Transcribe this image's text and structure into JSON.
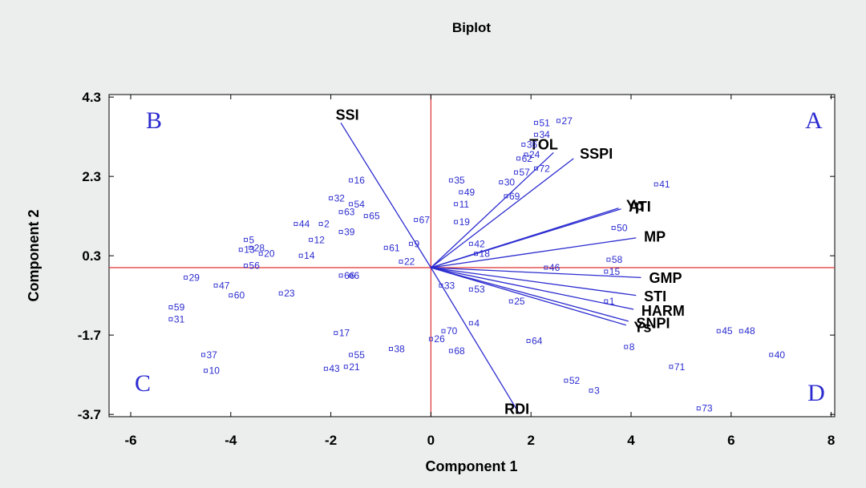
{
  "chart_data": {
    "type": "scatter",
    "title": "Biplot",
    "xlabel": "Component 1",
    "ylabel": "Component 2",
    "xlim": [
      -6.5,
      8.5
    ],
    "ylim": [
      -4.0,
      4.3
    ],
    "xticks": [
      -6,
      -4,
      -2,
      0,
      2,
      4,
      6,
      8
    ],
    "xtick_labels": [
      "-6",
      "-4",
      "-2",
      "0",
      "2",
      "4",
      "6",
      "8"
    ],
    "yticks": [
      4.3,
      2.3,
      0.3,
      -1.7,
      -3.7
    ],
    "ytick_labels": [
      "4.3",
      "2.3",
      "0.3",
      "-1.7",
      "-3.7"
    ],
    "reference_lines": {
      "x": 0,
      "y": 0,
      "color": "#e03030"
    },
    "colors": {
      "points": "#2b2bd0",
      "vectors": "#2b2bd0",
      "reference": "#e03030"
    },
    "quadrant_labels": [
      {
        "text": "A",
        "position": "top-right"
      },
      {
        "text": "B",
        "position": "top-left"
      },
      {
        "text": "C",
        "position": "bottom-left"
      },
      {
        "text": "D",
        "position": "bottom-right"
      }
    ],
    "vectors": [
      {
        "name": "SSI",
        "x": -1.8,
        "y": 3.65
      },
      {
        "name": "TOL",
        "x": 2.45,
        "y": 2.9
      },
      {
        "name": "SSPI",
        "x": 2.85,
        "y": 2.75
      },
      {
        "name": "Yp",
        "x": 3.75,
        "y": 1.5
      },
      {
        "name": "ATI",
        "x": 3.8,
        "y": 1.48
      },
      {
        "name": "MP",
        "x": 4.1,
        "y": 0.75
      },
      {
        "name": "GMP",
        "x": 4.2,
        "y": -0.25
      },
      {
        "name": "STI",
        "x": 4.1,
        "y": -0.7
      },
      {
        "name": "HARM",
        "x": 4.05,
        "y": -1.05
      },
      {
        "name": "SNPI",
        "x": 3.95,
        "y": -1.35
      },
      {
        "name": "Ys",
        "x": 3.9,
        "y": -1.45
      },
      {
        "name": "RDI",
        "x": 1.75,
        "y": -3.65
      }
    ],
    "points": [
      {
        "label": "1",
        "x": 3.5,
        "y": -0.85
      },
      {
        "label": "2",
        "x": -2.2,
        "y": 1.1
      },
      {
        "label": "3",
        "x": 3.2,
        "y": -3.1
      },
      {
        "label": "4",
        "x": 0.8,
        "y": -1.4
      },
      {
        "label": "5",
        "x": -3.7,
        "y": 0.7
      },
      {
        "label": "6",
        "x": -1.6,
        "y": -0.2
      },
      {
        "label": "8",
        "x": 3.9,
        "y": -2.0
      },
      {
        "label": "9",
        "x": -0.4,
        "y": 0.6
      },
      {
        "label": "10",
        "x": -4.5,
        "y": -2.6
      },
      {
        "label": "11",
        "x": 0.5,
        "y": 1.6
      },
      {
        "label": "12",
        "x": -2.4,
        "y": 0.7
      },
      {
        "label": "13",
        "x": -3.8,
        "y": 0.45
      },
      {
        "label": "14",
        "x": -2.6,
        "y": 0.3
      },
      {
        "label": "15",
        "x": 3.5,
        "y": -0.1
      },
      {
        "label": "16",
        "x": -1.6,
        "y": 2.2
      },
      {
        "label": "17",
        "x": -1.9,
        "y": -1.65
      },
      {
        "label": "18",
        "x": 0.9,
        "y": 0.35
      },
      {
        "label": "19",
        "x": 0.5,
        "y": 1.15
      },
      {
        "label": "20",
        "x": -3.4,
        "y": 0.35
      },
      {
        "label": "21",
        "x": -1.7,
        "y": -2.5
      },
      {
        "label": "22",
        "x": -0.6,
        "y": 0.15
      },
      {
        "label": "23",
        "x": -3.0,
        "y": -0.65
      },
      {
        "label": "24",
        "x": 1.9,
        "y": 2.85
      },
      {
        "label": "25",
        "x": 1.6,
        "y": -0.85
      },
      {
        "label": "26",
        "x": 0.0,
        "y": -1.8
      },
      {
        "label": "27",
        "x": 2.55,
        "y": 3.7
      },
      {
        "label": "28",
        "x": -3.6,
        "y": 0.5
      },
      {
        "label": "29",
        "x": -4.9,
        "y": -0.25
      },
      {
        "label": "30",
        "x": 1.4,
        "y": 2.15
      },
      {
        "label": "31",
        "x": -5.2,
        "y": -1.3
      },
      {
        "label": "32",
        "x": -2.0,
        "y": 1.75
      },
      {
        "label": "33",
        "x": 0.2,
        "y": -0.45
      },
      {
        "label": "34",
        "x": 2.1,
        "y": 3.35
      },
      {
        "label": "35",
        "x": 0.4,
        "y": 2.2
      },
      {
        "label": "36",
        "x": 1.85,
        "y": 3.1
      },
      {
        "label": "37",
        "x": -4.55,
        "y": -2.2
      },
      {
        "label": "38",
        "x": -0.8,
        "y": -2.05
      },
      {
        "label": "39",
        "x": -1.8,
        "y": 0.9
      },
      {
        "label": "40",
        "x": 6.8,
        "y": -2.2
      },
      {
        "label": "41",
        "x": 4.5,
        "y": 2.1
      },
      {
        "label": "42",
        "x": 0.8,
        "y": 0.6
      },
      {
        "label": "43",
        "x": -2.1,
        "y": -2.55
      },
      {
        "label": "44",
        "x": -2.7,
        "y": 1.1
      },
      {
        "label": "45",
        "x": 5.75,
        "y": -1.6
      },
      {
        "label": "46",
        "x": 2.3,
        "y": 0.0
      },
      {
        "label": "47",
        "x": -4.3,
        "y": -0.45
      },
      {
        "label": "48",
        "x": 6.2,
        "y": -1.6
      },
      {
        "label": "49",
        "x": 0.6,
        "y": 1.9
      },
      {
        "label": "50",
        "x": 3.65,
        "y": 1.0
      },
      {
        "label": "51",
        "x": 2.1,
        "y": 3.65
      },
      {
        "label": "52",
        "x": 2.7,
        "y": -2.85
      },
      {
        "label": "53",
        "x": 0.8,
        "y": -0.55
      },
      {
        "label": "54",
        "x": -1.6,
        "y": 1.6
      },
      {
        "label": "55",
        "x": -1.6,
        "y": -2.2
      },
      {
        "label": "56",
        "x": -3.7,
        "y": 0.05
      },
      {
        "label": "57",
        "x": 1.7,
        "y": 2.4
      },
      {
        "label": "58",
        "x": 3.55,
        "y": 0.2
      },
      {
        "label": "59",
        "x": -5.2,
        "y": -1.0
      },
      {
        "label": "60",
        "x": -4.0,
        "y": -0.7
      },
      {
        "label": "61",
        "x": -0.9,
        "y": 0.5
      },
      {
        "label": "62",
        "x": 1.75,
        "y": 2.75
      },
      {
        "label": "63",
        "x": -1.8,
        "y": 1.4
      },
      {
        "label": "64",
        "x": 1.95,
        "y": -1.85
      },
      {
        "label": "65",
        "x": -1.3,
        "y": 1.3
      },
      {
        "label": "66",
        "x": -1.8,
        "y": -0.2
      },
      {
        "label": "67",
        "x": -0.3,
        "y": 1.2
      },
      {
        "label": "68",
        "x": 0.4,
        "y": -2.1
      },
      {
        "label": "69",
        "x": 1.5,
        "y": 1.8
      },
      {
        "label": "70",
        "x": 0.25,
        "y": -1.6
      },
      {
        "label": "71",
        "x": 4.8,
        "y": -2.5
      },
      {
        "label": "72",
        "x": 2.1,
        "y": 2.5
      },
      {
        "label": "73",
        "x": 5.35,
        "y": -3.55
      }
    ]
  }
}
